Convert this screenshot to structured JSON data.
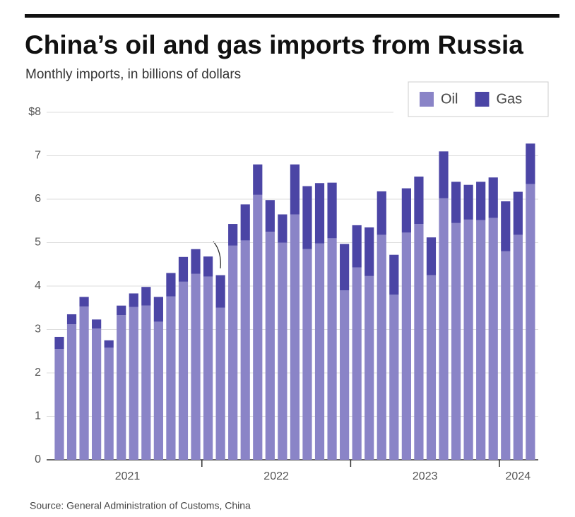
{
  "chart_data": {
    "type": "stacked-bar",
    "title": "China’s oil and gas imports from Russia",
    "subtitle": "Monthly imports, in billions of dollars",
    "source": "Source: General Administration of Customs,  China",
    "categories": [
      null,
      null,
      null,
      null,
      null,
      null,
      null,
      null,
      null,
      null,
      null,
      null,
      null,
      null,
      null,
      null,
      null,
      null,
      null,
      null,
      null,
      null,
      null,
      null,
      null,
      null,
      null,
      null,
      null,
      null,
      null,
      null,
      null,
      null,
      null,
      null,
      null,
      null,
      null
    ],
    "year_labels": [
      "2021",
      "2022",
      "2023",
      "2024"
    ],
    "series": [
      {
        "name": "Oil",
        "color": "#8a84c7",
        "values": [
          2.55,
          3.12,
          3.53,
          3.02,
          2.58,
          3.33,
          3.52,
          3.55,
          3.18,
          3.76,
          4.1,
          4.28,
          4.22,
          3.5,
          4.93,
          5.05,
          6.1,
          5.25,
          5.0,
          5.65,
          4.85,
          4.98,
          5.1,
          3.9,
          4.43,
          4.23,
          5.18,
          3.8,
          5.23,
          5.43,
          4.25,
          6.02,
          5.45,
          5.53,
          5.52,
          5.57,
          4.8,
          5.18,
          6.35
        ]
      },
      {
        "name": "Gas",
        "color": "#4b45a5",
        "values": [
          0.28,
          0.23,
          0.22,
          0.21,
          0.17,
          0.22,
          0.31,
          0.43,
          0.57,
          0.54,
          0.57,
          0.57,
          0.46,
          0.75,
          0.5,
          0.83,
          0.7,
          0.73,
          0.65,
          1.15,
          1.45,
          1.39,
          1.28,
          1.07,
          0.97,
          1.12,
          1.0,
          0.92,
          1.02,
          1.09,
          0.87,
          1.08,
          0.95,
          0.8,
          0.88,
          0.93,
          1.15,
          0.99,
          0.93
        ]
      }
    ],
    "ylim": [
      0,
      8
    ],
    "yticks": [
      0,
      1,
      2,
      3,
      4,
      5,
      6,
      7,
      {
        "value": 8,
        "label": "$8"
      }
    ],
    "grid": true,
    "legend": "top-right"
  }
}
